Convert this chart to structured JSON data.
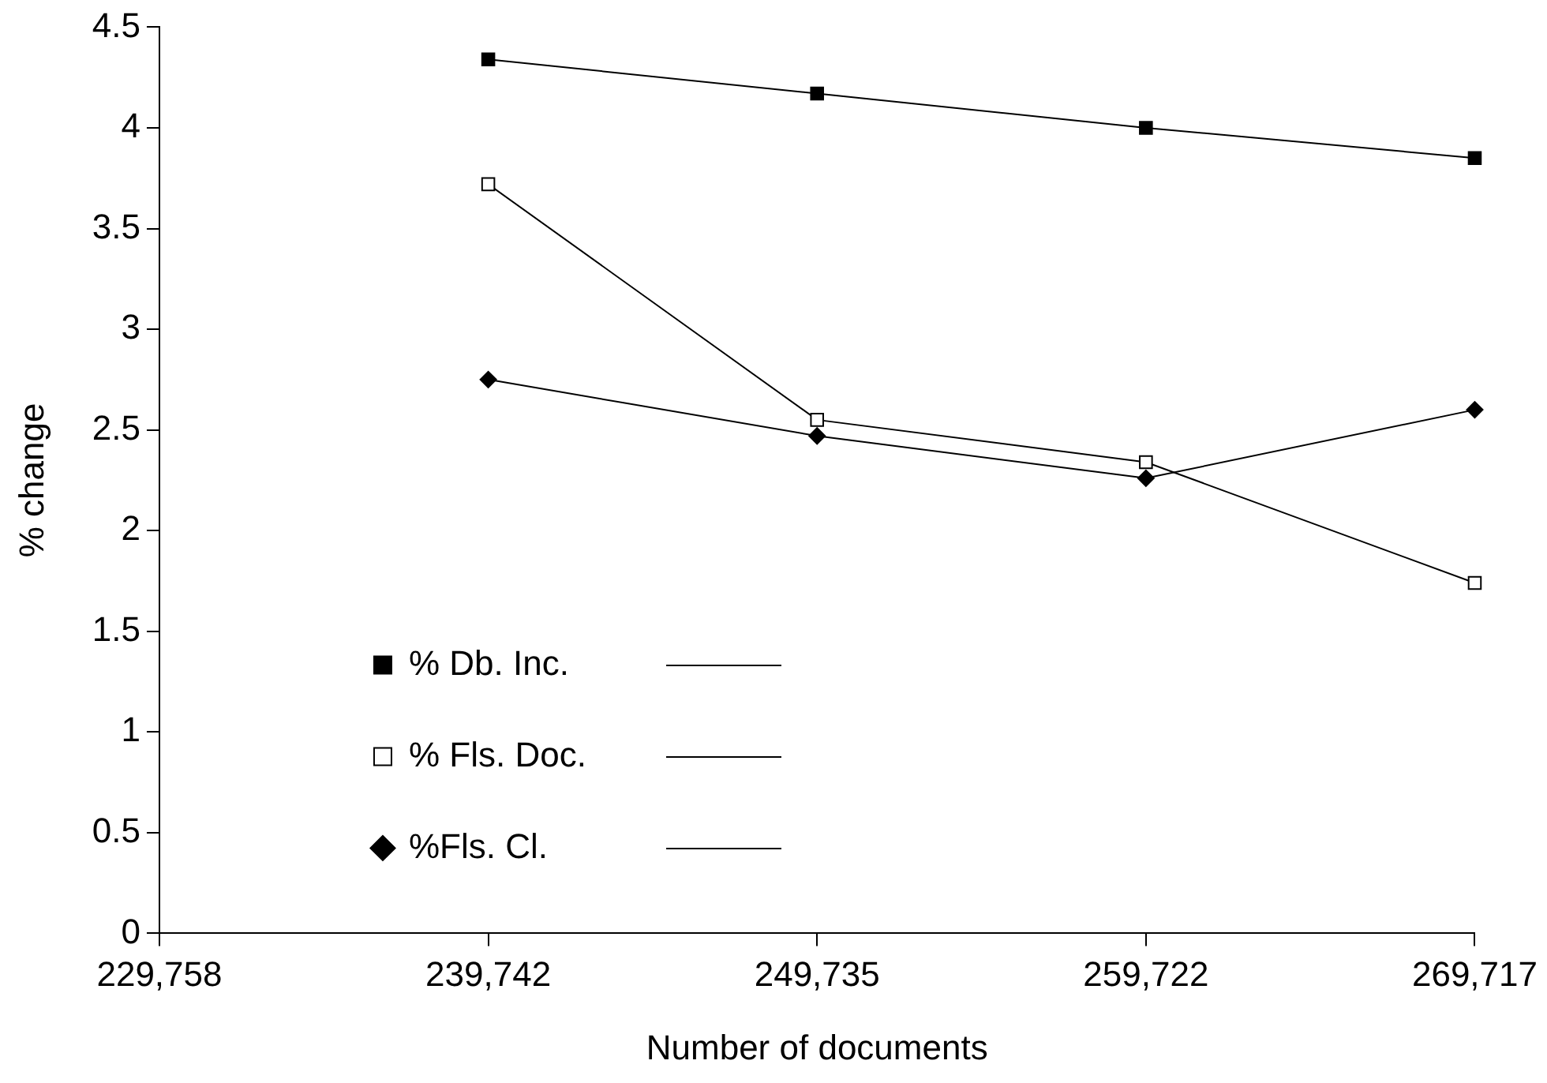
{
  "chart_data": {
    "type": "line",
    "xlabel": "Number of documents",
    "ylabel": "% change",
    "categories": [
      "229,758",
      "239,742",
      "249,735",
      "259,722",
      "269,717"
    ],
    "series": [
      {
        "name": "% Db. Inc.",
        "color": "#000000",
        "marker": "square",
        "values": [
          null,
          4.34,
          4.17,
          4.0,
          3.85
        ]
      },
      {
        "name": "% Fls. Doc.",
        "color": "#000000",
        "marker": "square",
        "values": [
          null,
          3.72,
          2.55,
          2.34,
          1.74
        ]
      },
      {
        "name": "%Fls. Cl.",
        "color": "#000000",
        "marker": "diamond",
        "values": [
          null,
          2.75,
          2.47,
          2.26,
          2.6
        ]
      }
    ],
    "ylim": [
      0,
      4.5
    ],
    "yticks": [
      0,
      0.5,
      1,
      1.5,
      2,
      2.5,
      3,
      3.5,
      4,
      4.5
    ],
    "grid": false,
    "legend": "left",
    "line_style": "solid"
  }
}
